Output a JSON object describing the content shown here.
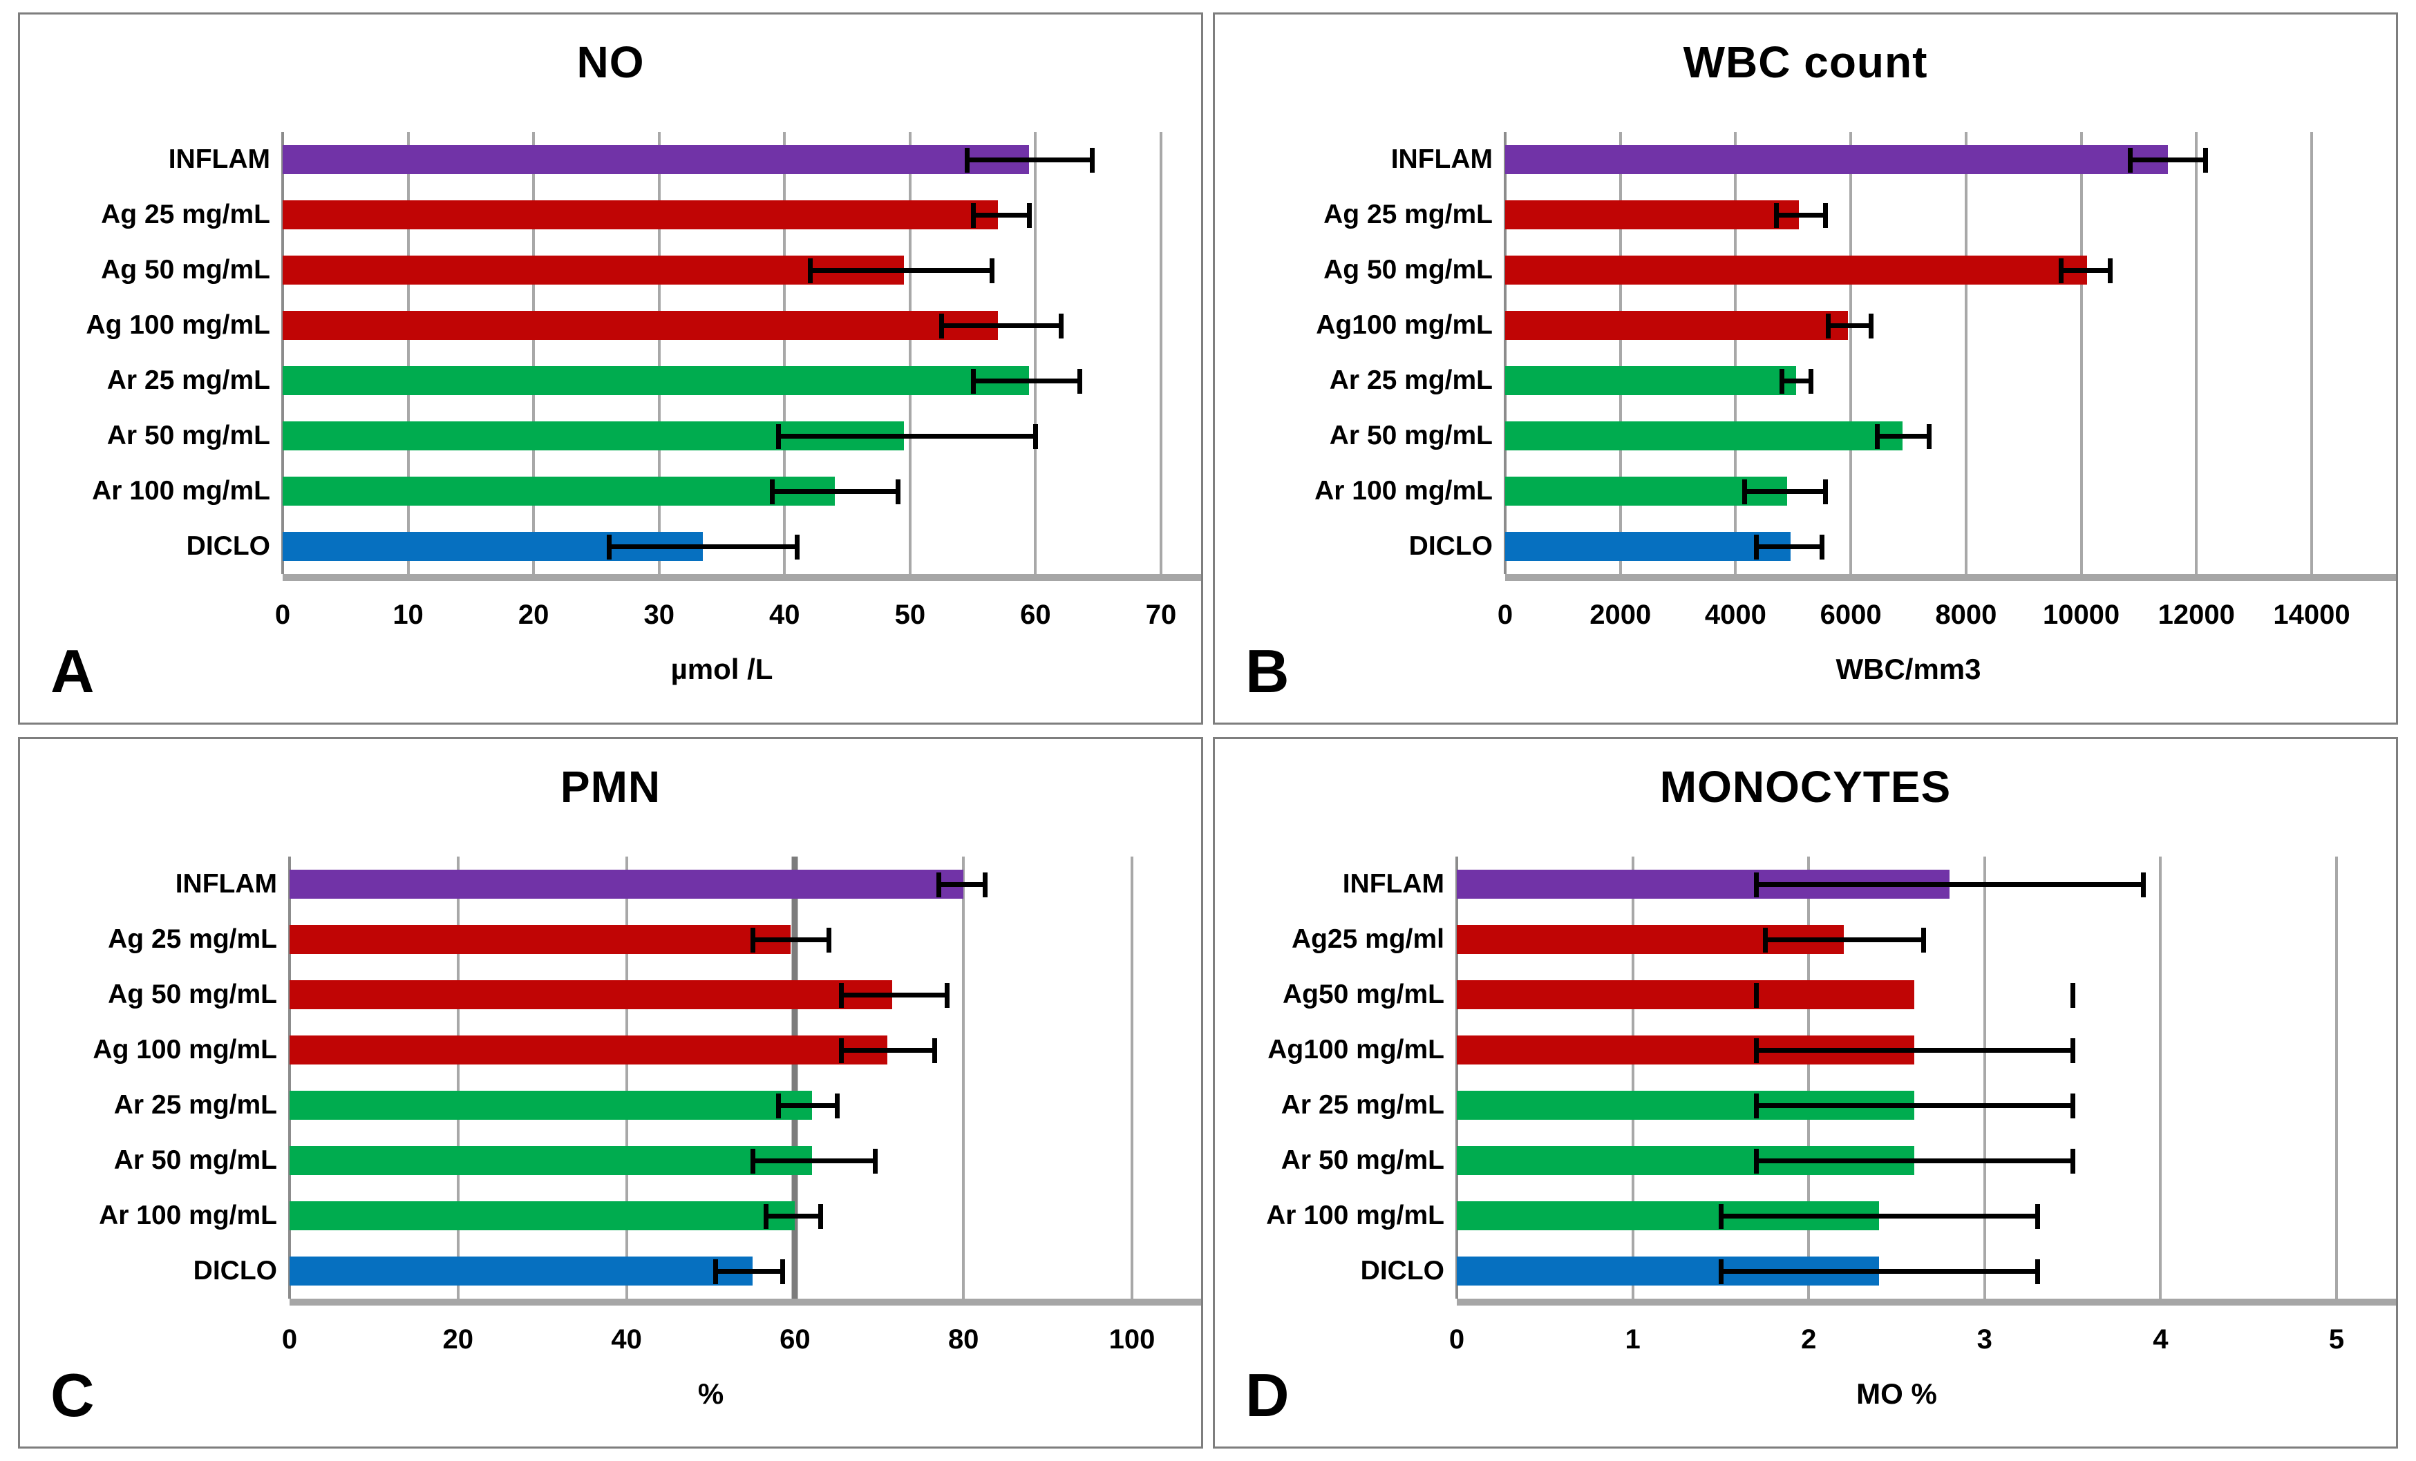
{
  "palette": {
    "purple": "#7133A7",
    "red": "#C00505",
    "green": "#00AC4F",
    "blue": "#0670C0",
    "error_bar": "#000000",
    "gridline": "#A8A8A8",
    "axis_line": "#A6A6A6",
    "panel_border": "#7E7E7E"
  },
  "chart_data": [
    {
      "type": "bar",
      "orientation": "horizontal",
      "letter": "A",
      "title": "NO",
      "xlabel": "µmol /L",
      "xlim": [
        0,
        70
      ],
      "ticks": [
        0,
        10,
        20,
        30,
        40,
        50,
        60,
        70
      ],
      "tick_labels": [
        "0",
        "10",
        "20",
        "30",
        "40",
        "50",
        "60",
        "70"
      ],
      "grid": true,
      "legend": false,
      "categories": [
        "INFLAM",
        "Ag 25 mg/mL",
        "Ag 50 mg/mL",
        "Ag 100 mg/mL",
        "Ar 25 mg/mL",
        "Ar 50 mg/mL",
        "Ar 100 mg/mL",
        "DICLO"
      ],
      "bar_colors": [
        "purple",
        "red",
        "red",
        "red",
        "green",
        "green",
        "green",
        "blue"
      ],
      "values": [
        59.5,
        57,
        49.5,
        57,
        59.5,
        49.5,
        44,
        33.5
      ],
      "error_low": [
        54.5,
        55,
        42,
        52.5,
        55,
        39.5,
        39,
        26
      ],
      "error_high": [
        64.5,
        59.5,
        56.5,
        62,
        63.5,
        60,
        49,
        41
      ]
    },
    {
      "type": "bar",
      "orientation": "horizontal",
      "letter": "B",
      "title": "WBC count",
      "xlabel": "WBC/mm3",
      "xlim": [
        0,
        14000
      ],
      "ticks": [
        0,
        2000,
        4000,
        6000,
        8000,
        10000,
        12000,
        14000
      ],
      "tick_labels": [
        "0",
        "2000",
        "4000",
        "6000",
        "8000",
        "10000",
        "12000",
        "14000"
      ],
      "grid": true,
      "legend": false,
      "categories": [
        "INFLAM",
        "Ag 25 mg/mL",
        "Ag 50 mg/mL",
        "Ag100 mg/mL",
        "Ar 25 mg/mL",
        "Ar 50 mg/mL",
        "Ar 100 mg/mL",
        "DICLO"
      ],
      "bar_colors": [
        "purple",
        "red",
        "red",
        "red",
        "green",
        "green",
        "green",
        "blue"
      ],
      "values": [
        11500,
        5100,
        10100,
        5950,
        5050,
        6900,
        4900,
        4950
      ],
      "error_low": [
        10850,
        4700,
        9650,
        5600,
        4800,
        6450,
        4150,
        4350
      ],
      "error_high": [
        12150,
        5550,
        10500,
        6350,
        5300,
        7350,
        5550,
        5500
      ]
    },
    {
      "type": "bar",
      "orientation": "horizontal",
      "letter": "C",
      "title": "PMN",
      "xlabel": "%",
      "xlim": [
        0,
        100
      ],
      "ticks": [
        0,
        20,
        40,
        60,
        80,
        100
      ],
      "tick_labels": [
        "0",
        "20",
        "40",
        "60",
        "80",
        "100"
      ],
      "grid": true,
      "legend": false,
      "strong_gridline": 60,
      "categories": [
        "INFLAM",
        "Ag 25 mg/mL",
        "Ag 50 mg/mL",
        "Ag 100 mg/mL",
        "Ar 25 mg/mL",
        "Ar 50 mg/mL",
        "Ar 100 mg/mL",
        "DICLO"
      ],
      "bar_colors": [
        "purple",
        "red",
        "red",
        "red",
        "green",
        "green",
        "green",
        "blue"
      ],
      "values": [
        80,
        59.5,
        71.5,
        71,
        62,
        62,
        60,
        55
      ],
      "error_low": [
        77,
        55,
        65.5,
        65.5,
        58,
        55,
        56.5,
        50.5
      ],
      "error_high": [
        82.5,
        64,
        78,
        76.5,
        65,
        69.5,
        63,
        58.5
      ]
    },
    {
      "type": "bar",
      "orientation": "horizontal",
      "letter": "D",
      "title": "MONOCYTES",
      "xlabel": "MO %",
      "xlim": [
        0,
        5
      ],
      "ticks": [
        0,
        1,
        2,
        3,
        4,
        5
      ],
      "tick_labels": [
        "0",
        "1",
        "2",
        "3",
        "4",
        "5"
      ],
      "grid": true,
      "legend": false,
      "categories": [
        "INFLAM",
        "Ag25 mg/ml",
        "Ag50 mg/mL",
        "Ag100 mg/mL",
        "Ar 25 mg/mL",
        "Ar 50 mg/mL",
        "Ar 100 mg/mL",
        "DICLO"
      ],
      "bar_colors": [
        "purple",
        "red",
        "red",
        "red",
        "green",
        "green",
        "green",
        "blue"
      ],
      "values": [
        2.8,
        2.2,
        2.6,
        2.6,
        2.6,
        2.6,
        2.4,
        2.4
      ],
      "error_low": [
        1.7,
        1.75,
        1.7,
        1.7,
        1.7,
        1.7,
        1.5,
        1.5
      ],
      "error_high": [
        3.9,
        2.65,
        3.5,
        3.5,
        3.5,
        3.5,
        3.3,
        3.3
      ],
      "error_line_hidden": [
        false,
        false,
        true,
        false,
        false,
        false,
        false,
        false
      ]
    }
  ]
}
